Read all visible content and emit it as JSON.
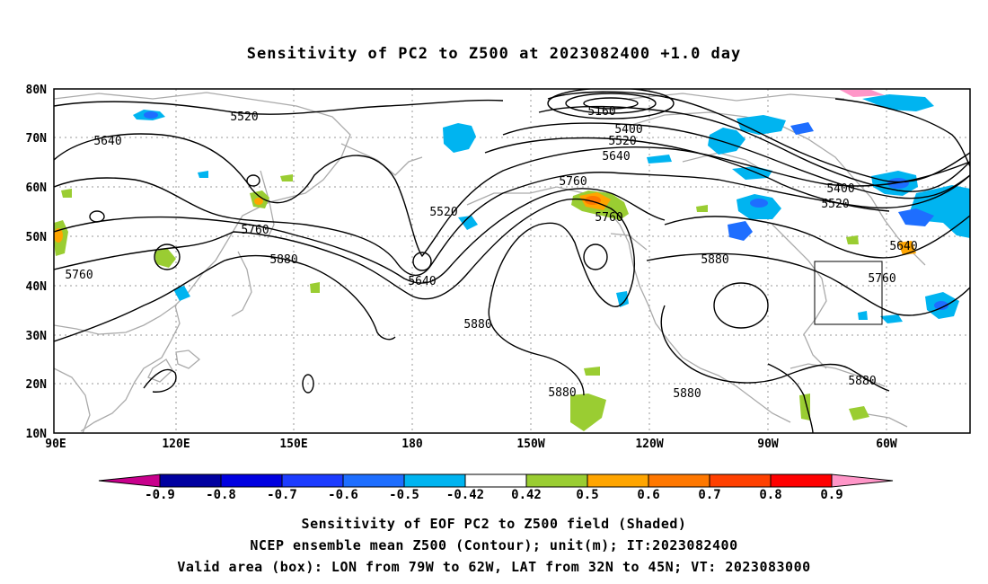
{
  "title": "Sensitivity of PC2 to Z500 at 2023082400 +1.0 day",
  "lat_labels": [
    "80N",
    "70N",
    "60N",
    "50N",
    "40N",
    "30N",
    "20N",
    "10N"
  ],
  "lon_labels": [
    "90E",
    "120E",
    "150E",
    "180",
    "150W",
    "120W",
    "90W",
    "60W"
  ],
  "contour_labels": [
    {
      "text": "5520"
    },
    {
      "text": "5640"
    },
    {
      "text": "5160"
    },
    {
      "text": "5400"
    },
    {
      "text": "5520"
    },
    {
      "text": "5640"
    },
    {
      "text": "5760"
    },
    {
      "text": "5760"
    },
    {
      "text": "5520"
    },
    {
      "text": "5760"
    },
    {
      "text": "5880"
    },
    {
      "text": "5640"
    },
    {
      "text": "5760"
    },
    {
      "text": "5880"
    },
    {
      "text": "5880"
    },
    {
      "text": "5880"
    },
    {
      "text": "5400"
    },
    {
      "text": "5520"
    },
    {
      "text": "5640"
    },
    {
      "text": "5760"
    },
    {
      "text": "5880"
    },
    {
      "text": "5880"
    }
  ],
  "colorbar": {
    "labels": [
      "-0.9",
      "-0.8",
      "-0.7",
      "-0.6",
      "-0.5",
      "-0.42",
      "0.42",
      "0.5",
      "0.6",
      "0.7",
      "0.8",
      "0.9"
    ],
    "colors": [
      "#0000a0",
      "#0000e0",
      "#1c3cff",
      "#1e6eff",
      "#00b4f0",
      "#ffffff",
      "#9acd32",
      "#ffa500",
      "#ff7800",
      "#ff4000",
      "#ff0000"
    ],
    "low_color": "#c8008c",
    "high_color": "#ff96c8"
  },
  "captions": [
    "Sensitivity of EOF PC2 to Z500 field (Shaded)",
    "NCEP ensemble mean Z500 (Contour); unit(m); IT:2023082400",
    "Valid area (box): LON from 79W to 62W, LAT from 32N to 45N; VT: 2023083000"
  ]
}
